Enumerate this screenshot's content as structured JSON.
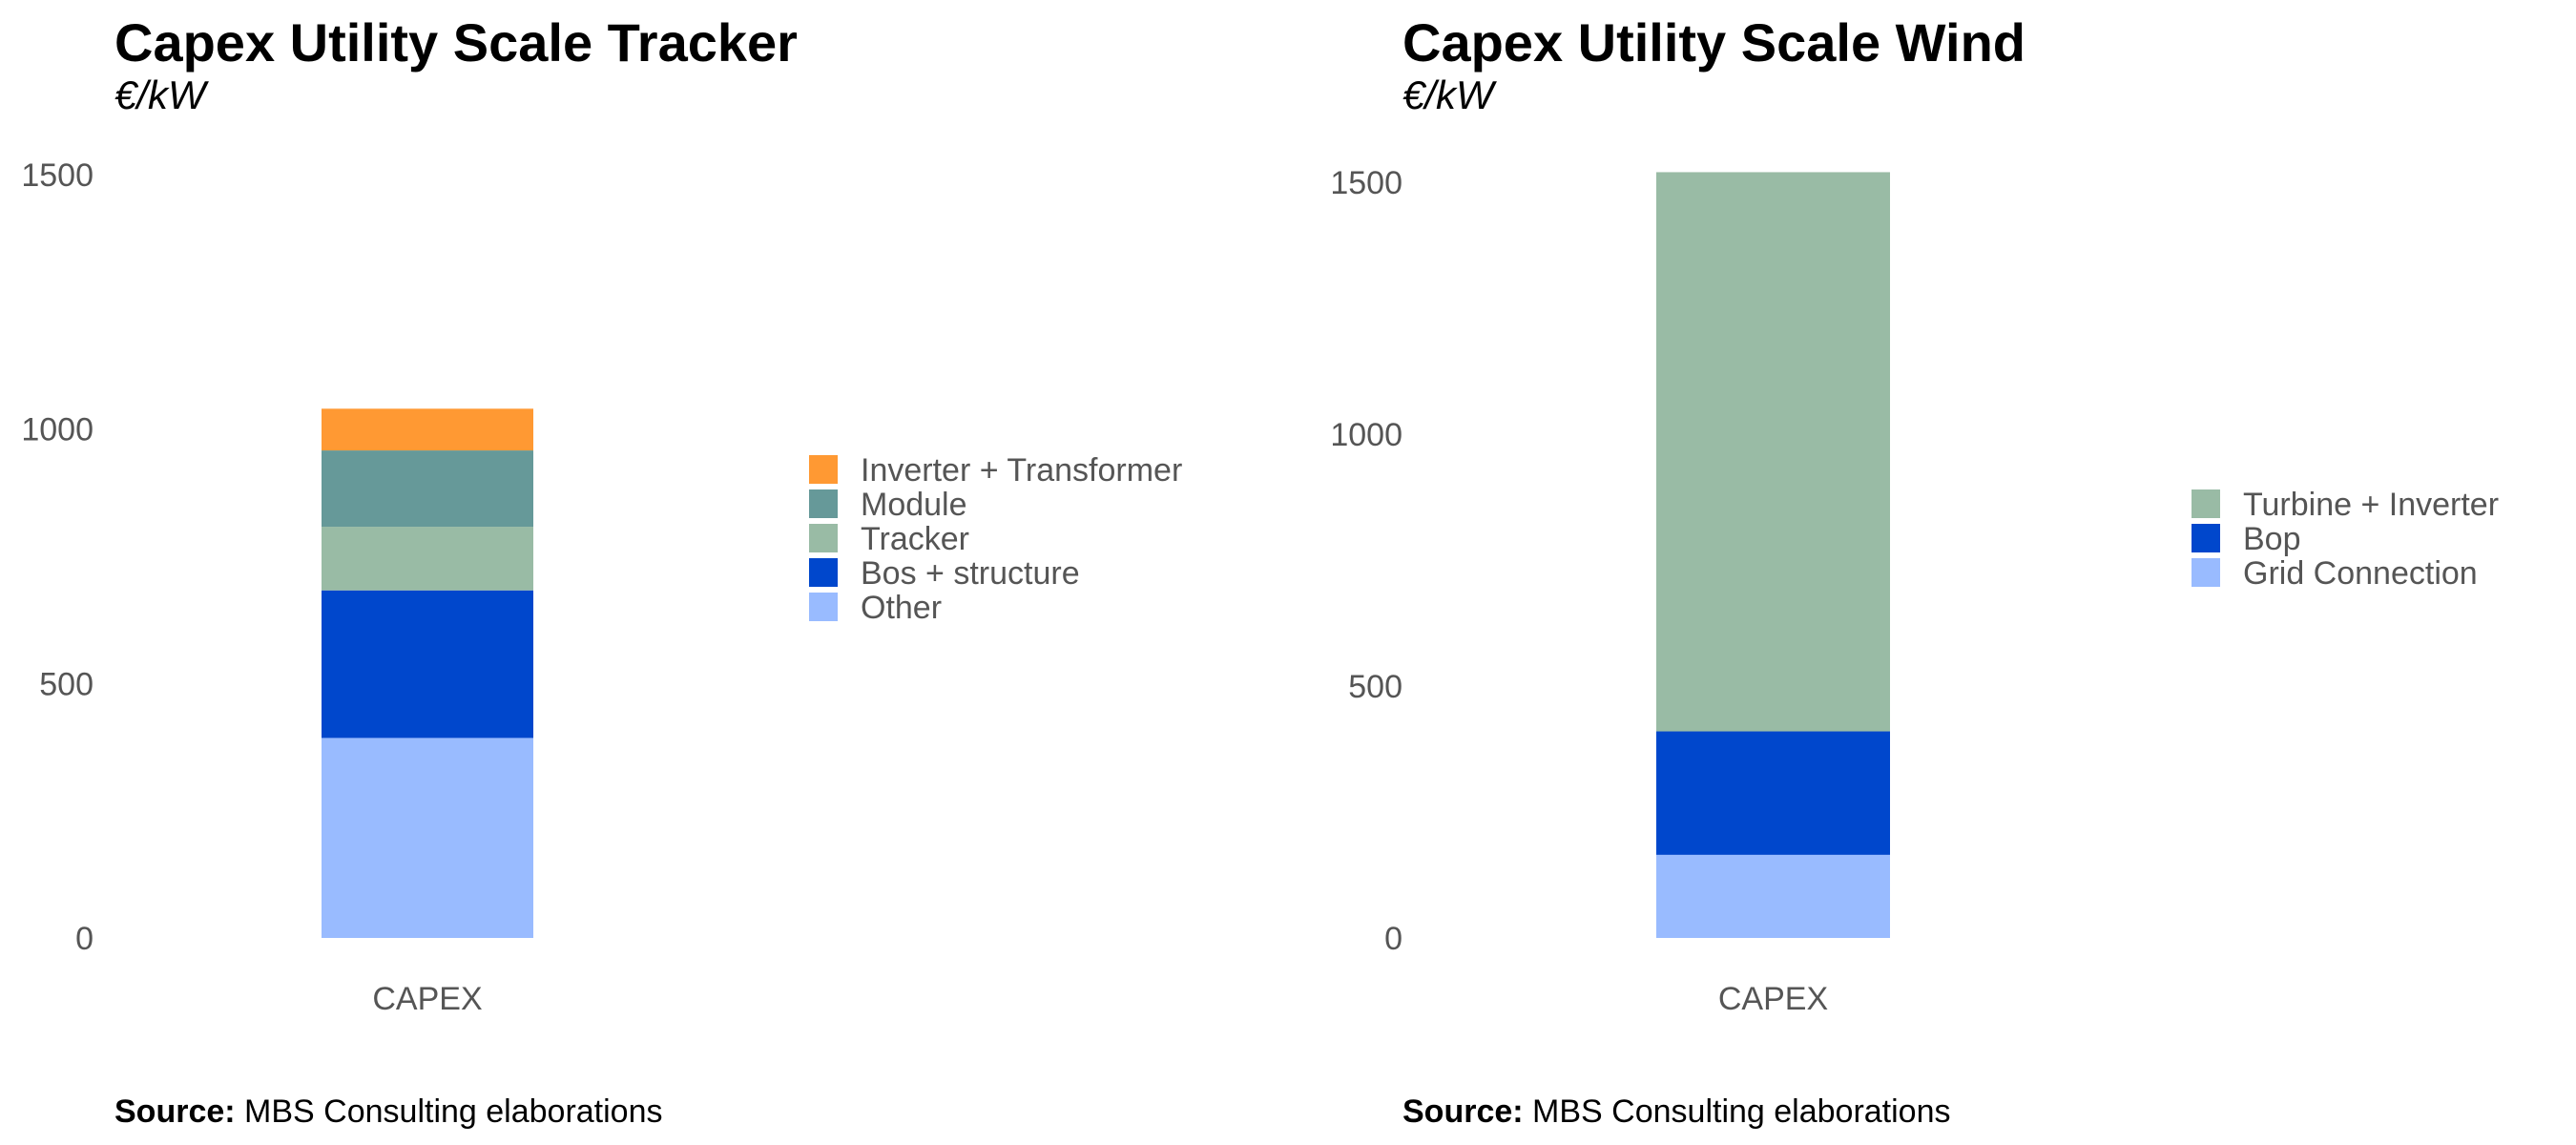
{
  "chart_data": [
    {
      "type": "bar",
      "stacked": true,
      "title": "Capex Utility Scale Tracker",
      "subtitle": "€/kW",
      "categories": [
        "CAPEX"
      ],
      "ylim": [
        0,
        1500
      ],
      "yticks": [
        0,
        500,
        1000,
        1500
      ],
      "grid": false,
      "legend_position": "right",
      "series": [
        {
          "name": "Other",
          "values": [
            393
          ],
          "color": "#99BBFF"
        },
        {
          "name": "Bos + structure",
          "values": [
            290
          ],
          "color": "#0047CC"
        },
        {
          "name": "Tracker",
          "values": [
            125
          ],
          "color": "#99BBA5"
        },
        {
          "name": "Module",
          "values": [
            150
          ],
          "color": "#669999"
        },
        {
          "name": "Inverter + Transformer",
          "values": [
            82
          ],
          "color": "#FF9933"
        }
      ],
      "legend_order": [
        "Inverter + Transformer",
        "Module",
        "Tracker",
        "Bos + structure",
        "Other"
      ],
      "source_label": "Source:",
      "source_text": " MBS Consulting elaborations"
    },
    {
      "type": "bar",
      "stacked": true,
      "title": "Capex Utility Scale Wind",
      "subtitle": "€/kW",
      "categories": [
        "CAPEX"
      ],
      "ylim": [
        0,
        1500
      ],
      "yticks": [
        0,
        500,
        1000,
        1500
      ],
      "grid": false,
      "legend_position": "right",
      "series": [
        {
          "name": "Grid Connection",
          "values": [
            165
          ],
          "color": "#99BBFF"
        },
        {
          "name": "Bop",
          "values": [
            245
          ],
          "color": "#0047CC"
        },
        {
          "name": "Turbine + Inverter",
          "values": [
            1110
          ],
          "color": "#99BBA5"
        }
      ],
      "legend_order": [
        "Turbine + Inverter",
        "Bop",
        "Grid Connection"
      ],
      "source_label": "Source:",
      "source_text": " MBS Consulting elaborations"
    }
  ]
}
